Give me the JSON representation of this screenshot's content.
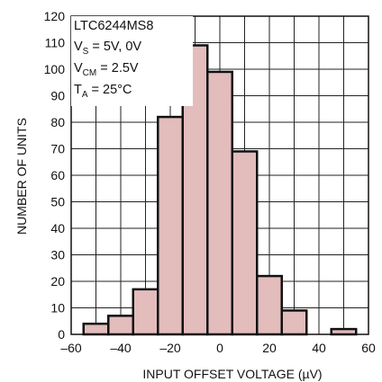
{
  "chart_data": {
    "type": "bar",
    "title": "",
    "xlabel": "INPUT OFFSET VOLTAGE (µV)",
    "ylabel": "NUMBER OF UNITS",
    "xlim": [
      -60,
      60
    ],
    "ylim": [
      0,
      120
    ],
    "xticks": [
      "–60",
      "–40",
      "–20",
      "0",
      "20",
      "40",
      "60"
    ],
    "yticks": [
      "0",
      "10",
      "20",
      "30",
      "40",
      "50",
      "60",
      "70",
      "80",
      "90",
      "100",
      "110",
      "120"
    ],
    "grid": true,
    "bin_width": 10,
    "bins": [
      {
        "center": -50,
        "count": 4
      },
      {
        "center": -40,
        "count": 7
      },
      {
        "center": -30,
        "count": 17
      },
      {
        "center": -20,
        "count": 82
      },
      {
        "center": -10,
        "count": 109
      },
      {
        "center": 0,
        "count": 99
      },
      {
        "center": 10,
        "count": 69
      },
      {
        "center": 20,
        "count": 22
      },
      {
        "center": 30,
        "count": 9
      },
      {
        "center": 40,
        "count": 0
      },
      {
        "center": 50,
        "count": 2
      }
    ],
    "annotation": {
      "part": "LTC6244MS8",
      "vs_main": "V",
      "vs_sub": "S",
      "vs_rest": " = 5V, 0V",
      "vcm_main": "V",
      "vcm_sub": "CM",
      "vcm_rest": " = 2.5V",
      "ta_main": "T",
      "ta_sub": "A",
      "ta_rest": " = 25°C"
    }
  }
}
